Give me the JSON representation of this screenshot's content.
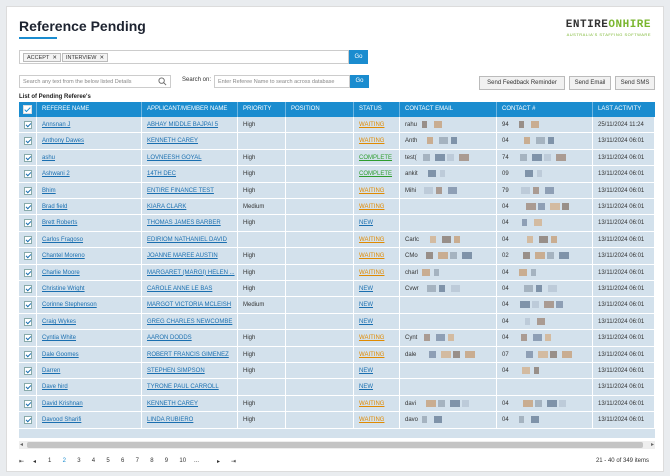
{
  "page": {
    "title": "Reference Pending"
  },
  "logo": {
    "name_a": "ENTIRE",
    "name_b": "ONHIRE",
    "tagline": "AUSTRALIA'S STAFFING SOFTWARE"
  },
  "filters": {
    "chips": [
      "ACCEPT",
      "INTERVIEW"
    ],
    "go_label": "Go"
  },
  "search": {
    "any_placeholder": "Search any text from the below listed Details",
    "search_on_label": "Search on:",
    "referee_placeholder": "Enter Referee Name to search across database",
    "go_label": "Go"
  },
  "actions": {
    "feedback": "Send Feedback Reminder",
    "email": "Send Email",
    "sms": "Send SMS"
  },
  "list_title": "List of Pending Referee's",
  "columns": [
    "REFEREE NAME",
    "APPLICANT/MEMBER NAME",
    "PRIORITY",
    "POSITION",
    "STATUS",
    "CONTACT EMAIL",
    "CONTACT #",
    "LAST ACTIVITY"
  ],
  "rows": [
    {
      "referee": "Annsnan J",
      "applicant": "ABHAY MIDDLE BAJPAI 5",
      "priority": "High",
      "status": "WAITING",
      "email": "rahu",
      "phone": "94",
      "activity": "25/11/2024 11:24"
    },
    {
      "referee": "Anthony Dawes",
      "applicant": "KENNETH CAREY",
      "priority": "",
      "status": "WAITING",
      "email": "Anth",
      "phone": "04",
      "activity": "13/11/2024 06:01"
    },
    {
      "referee": "ashu",
      "applicant": "LOVNEESH GOYAL",
      "priority": "High",
      "status": "COMPLETE",
      "email": "test(",
      "phone": "74",
      "activity": "13/11/2024 06:01"
    },
    {
      "referee": "Ashwani 2",
      "applicant": "14TH DEC",
      "priority": "High",
      "status": "COMPLETE",
      "email": "ankit",
      "phone": "09",
      "activity": "13/11/2024 06:01"
    },
    {
      "referee": "Bhim",
      "applicant": "ENTIRE FINANCE TEST",
      "priority": "High",
      "status": "WAITING",
      "email": "Mihi",
      "phone": "79",
      "activity": "13/11/2024 06:01"
    },
    {
      "referee": "Brad field",
      "applicant": "KIARA CLARK",
      "priority": "Medium",
      "status": "WAITING",
      "email": "",
      "phone": "04",
      "activity": "13/11/2024 06:01"
    },
    {
      "referee": "Brett Roberts",
      "applicant": "THOMAS JAMES BARBER",
      "priority": "High",
      "status": "NEW",
      "email": "",
      "phone": "04",
      "activity": "13/11/2024 06:01"
    },
    {
      "referee": "Carlos Fragoso",
      "applicant": "EDIRIOM NATHANIEL DAVID",
      "priority": "",
      "status": "WAITING",
      "email": "Carlc",
      "phone": "04",
      "activity": "13/11/2024 06:01"
    },
    {
      "referee": "Chantel Moreno",
      "applicant": "JOANNE MAREE AUSTIN",
      "priority": "High",
      "status": "WAITING",
      "email": "CMo",
      "phone": "02",
      "activity": "13/11/2024 06:01"
    },
    {
      "referee": "Charlie Moore",
      "applicant": "MARGARET (MARGI) HELEN ...",
      "priority": "High",
      "status": "WAITING",
      "email": "charl",
      "phone": "04",
      "activity": "13/11/2024 06:01"
    },
    {
      "referee": "Christine Wright",
      "applicant": "CAROLE ANNE LE BAS",
      "priority": "High",
      "status": "NEW",
      "email": "Cvwr",
      "phone": "04",
      "activity": "13/11/2024 06:01"
    },
    {
      "referee": "Corinne Stephenson",
      "applicant": "MARGOT VICTORIA MCLEISH",
      "priority": "Medium",
      "status": "NEW",
      "email": "",
      "phone": "04",
      "activity": "13/11/2024 06:01"
    },
    {
      "referee": "Craig Wykes",
      "applicant": "GREG CHARLES NEWCOMBE",
      "priority": "",
      "status": "NEW",
      "email": "",
      "phone": "04",
      "activity": "13/11/2024 06:01"
    },
    {
      "referee": "Cyntia White",
      "applicant": "AARON DODDS",
      "priority": "High",
      "status": "WAITING",
      "email": "Cynt",
      "phone": "04",
      "activity": "13/11/2024 06:01"
    },
    {
      "referee": "Dale Goomes",
      "applicant": "ROBERT FRANCIS GIMENEZ",
      "priority": "High",
      "status": "WAITING",
      "email": "dale",
      "phone": "07",
      "activity": "13/11/2024 06:01"
    },
    {
      "referee": "Darren",
      "applicant": "STEPHEN SIMPSON",
      "priority": "High",
      "status": "NEW",
      "email": "",
      "phone": "04",
      "activity": "13/11/2024 06:01"
    },
    {
      "referee": "Dave hird",
      "applicant": "TYRONE PAUL CARROLL",
      "priority": "",
      "status": "NEW",
      "email": "",
      "phone": "",
      "activity": "13/11/2024 06:01"
    },
    {
      "referee": "David Krishnan",
      "applicant": "KENNETH CAREY",
      "priority": "High",
      "status": "WAITING",
      "email": "davi",
      "phone": "04",
      "activity": "13/11/2024 06:01"
    },
    {
      "referee": "Davood Sharifi",
      "applicant": "LINDA RUBIERO",
      "priority": "High",
      "status": "WAITING",
      "email": "davo",
      "phone": "04",
      "activity": "13/11/2024 06:01"
    }
  ],
  "pager": {
    "pages": [
      "1",
      "2",
      "3",
      "4",
      "5",
      "6",
      "7",
      "8",
      "9",
      "10",
      "..."
    ],
    "current": "2",
    "info": "21 - 40 of 349 items"
  },
  "colors": {
    "accent": "#1a8ccf",
    "row_bg": "#d3e1ec",
    "waiting": "#e08a00",
    "complete": "#2e9d2e"
  }
}
